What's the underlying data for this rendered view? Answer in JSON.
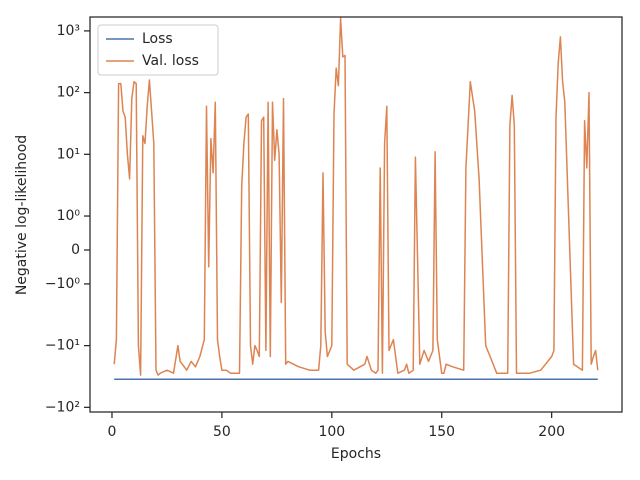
{
  "chart_data": {
    "type": "line",
    "xlabel": "Epochs",
    "ylabel": "Negative log-likelihood",
    "yscale": "symlog",
    "xlim": [
      -10,
      232
    ],
    "xticks": [
      0,
      50,
      100,
      150,
      200
    ],
    "ylim": [
      -119,
      1680
    ],
    "yticks": [
      {
        "value": -100,
        "label": "−10²"
      },
      {
        "value": -10,
        "label": "−10¹"
      },
      {
        "value": -1,
        "label": "−10⁰"
      },
      0,
      {
        "value": 1,
        "label": "10⁰"
      },
      {
        "value": 10,
        "label": "10¹"
      },
      {
        "value": 100,
        "label": "10²"
      },
      {
        "value": 1000,
        "label": "10³"
      }
    ],
    "legend": "upper left",
    "series": [
      {
        "name": "Loss",
        "color": "#4c72b0",
        "x": [
          1,
          221
        ],
        "values": [
          -35,
          -35
        ]
      },
      {
        "name": "Val. loss",
        "color": "#dd8452",
        "x": [
          1,
          2,
          3,
          4,
          5,
          6,
          7,
          8,
          9,
          10,
          11,
          12,
          13,
          14,
          15,
          16,
          17,
          18,
          19,
          20,
          21,
          22,
          25,
          28,
          30,
          31,
          32,
          34,
          36,
          38,
          40,
          42,
          43,
          44,
          45,
          46,
          47,
          48,
          49,
          50,
          52,
          54,
          56,
          58,
          59,
          60,
          61,
          62,
          63,
          64,
          65,
          66,
          67,
          68,
          69,
          70,
          71,
          72,
          73,
          74,
          75,
          76,
          77,
          78,
          79,
          80,
          85,
          90,
          94,
          95,
          96,
          97,
          98,
          100,
          101,
          102,
          103,
          104,
          105,
          106,
          107,
          110,
          115,
          116,
          118,
          120,
          121,
          122,
          123,
          124,
          125,
          126,
          128,
          130,
          133,
          134,
          135,
          137,
          138,
          140,
          142,
          144,
          146,
          147,
          148,
          150,
          151,
          152,
          155,
          160,
          161,
          162,
          163,
          165,
          167,
          170,
          172,
          175,
          180,
          181,
          182,
          183,
          184,
          185,
          190,
          195,
          200,
          201,
          202,
          203,
          204,
          205,
          206,
          210,
          214,
          215,
          216,
          217,
          218,
          219,
          220,
          221
        ],
        "values": [
          -20,
          -8,
          140,
          140,
          50,
          40,
          10,
          4,
          80,
          150,
          140,
          -10,
          -30,
          20,
          15,
          60,
          160,
          50,
          15,
          -25,
          -30,
          -28,
          -25,
          -28,
          -10,
          -18,
          -20,
          -25,
          -18,
          -22,
          -15,
          -8,
          60,
          -0.5,
          18,
          5,
          70,
          -8,
          -15,
          -25,
          -25,
          -28,
          -28,
          -28,
          3,
          15,
          40,
          45,
          -10,
          -20,
          -10,
          -12,
          -15,
          35,
          40,
          -12,
          70,
          -15,
          70,
          8,
          25,
          10,
          -2,
          80,
          -20,
          -18,
          -22,
          -25,
          -25,
          -10,
          5,
          -6,
          -15,
          -10,
          45,
          250,
          130,
          1600,
          380,
          400,
          -20,
          -25,
          -20,
          -15,
          -25,
          -28,
          -25,
          6,
          -28,
          15,
          60,
          -12,
          -8,
          -28,
          -25,
          -20,
          -28,
          -25,
          9,
          -20,
          -12,
          -18,
          -12,
          11,
          -8,
          -28,
          -28,
          -20,
          -22,
          -25,
          6,
          30,
          150,
          50,
          4,
          -10,
          -15,
          -28,
          -28,
          30,
          90,
          30,
          -28,
          -28,
          -28,
          -25,
          -15,
          -12,
          40,
          300,
          800,
          150,
          70,
          -20,
          -25,
          35,
          6,
          100,
          -20,
          -15,
          -12,
          -25
        ]
      }
    ]
  }
}
